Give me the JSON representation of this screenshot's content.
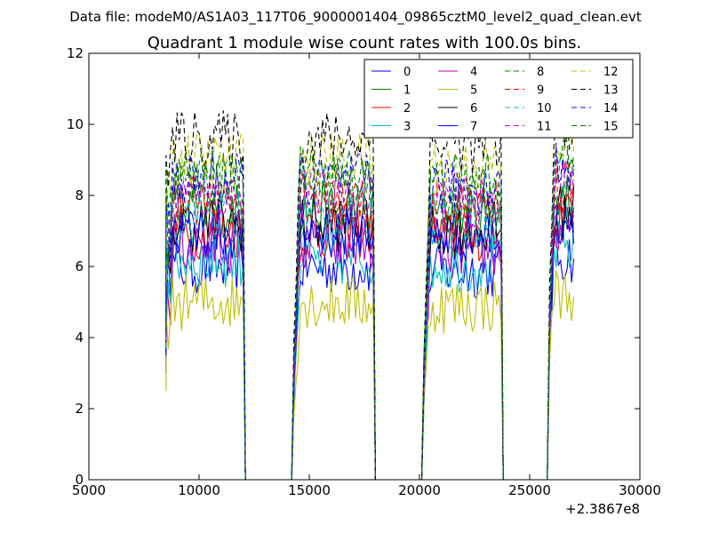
{
  "header": {
    "data_file": "Data file: modeM0/AS1A03_117T06_9000001404_09865cztM0_level2_quad_clean.evt"
  },
  "chart_data": {
    "type": "line",
    "title": "Quadrant 1 module wise count rates with 100.0s bins.",
    "xlabel": "",
    "ylabel": "",
    "x_offset_label": "+2.3867e8",
    "xlim": [
      5000,
      30000
    ],
    "ylim": [
      0,
      12
    ],
    "x_ticks": [
      5000,
      10000,
      15000,
      20000,
      25000,
      30000
    ],
    "x_tick_labels": [
      "5000",
      "10000",
      "15000",
      "20000",
      "25000",
      "30000"
    ],
    "y_ticks": [
      0,
      2,
      4,
      6,
      8,
      10,
      12
    ],
    "y_tick_labels": [
      "0",
      "2",
      "4",
      "6",
      "8",
      "10",
      "12"
    ],
    "grid": false,
    "legend_position": "top-right",
    "series": [
      {
        "name": "0",
        "color": "#0000ff",
        "style": "solid",
        "level": 6.0
      },
      {
        "name": "1",
        "color": "#008000",
        "style": "solid",
        "level": 7.6
      },
      {
        "name": "2",
        "color": "#ff0000",
        "style": "solid",
        "level": 7.0
      },
      {
        "name": "3",
        "color": "#00bfbf",
        "style": "solid",
        "level": 6.2
      },
      {
        "name": "4",
        "color": "#bf00bf",
        "style": "solid",
        "level": 6.6
      },
      {
        "name": "5",
        "color": "#bfbf00",
        "style": "solid",
        "level": 5.0
      },
      {
        "name": "6",
        "color": "#000000",
        "style": "solid",
        "level": 7.2
      },
      {
        "name": "7",
        "color": "#0000ff",
        "style": "solid",
        "level": 7.0
      },
      {
        "name": "8",
        "color": "#008000",
        "style": "dashed",
        "level": 8.2
      },
      {
        "name": "9",
        "color": "#ff0000",
        "style": "dashed",
        "level": 7.8
      },
      {
        "name": "10",
        "color": "#00bfbf",
        "style": "dashed",
        "level": 7.4
      },
      {
        "name": "11",
        "color": "#bf00bf",
        "style": "dashed",
        "level": 8.0
      },
      {
        "name": "12",
        "color": "#bfbf00",
        "style": "dashed",
        "level": 9.0
      },
      {
        "name": "13",
        "color": "#000000",
        "style": "dashed",
        "level": 9.6
      },
      {
        "name": "14",
        "color": "#0000ff",
        "style": "dashed",
        "level": 8.4
      },
      {
        "name": "15",
        "color": "#008000",
        "style": "dashed",
        "level": 8.6
      }
    ],
    "segments": [
      {
        "start": 8500,
        "end": 12000,
        "rate_factor": 1.0
      },
      {
        "start": 14300,
        "end": 17900,
        "rate_factor": 1.0
      },
      {
        "start": 20200,
        "end": 23700,
        "rate_factor": 0.98
      },
      {
        "start": 25900,
        "end": 27000,
        "rate_factor": 1.05
      }
    ],
    "gap_value": 0
  }
}
